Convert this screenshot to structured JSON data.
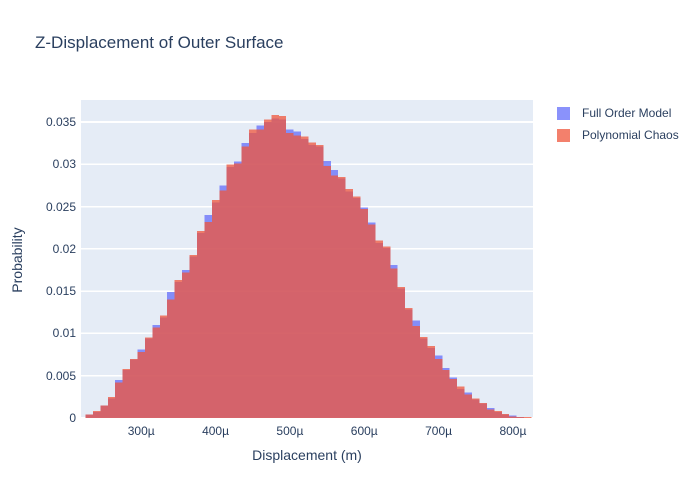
{
  "title": "Z-Displacement of Outer Surface",
  "colors": {
    "full_order_model": "#636efa",
    "polynomial_chaos": "#ef553b",
    "plot_background": "#e5ecf6",
    "gridline": "#ffffff",
    "text": "#2a3f5f",
    "page_background": "#ffffff"
  },
  "legend": {
    "items": [
      {
        "label": "Full Order Model",
        "color": "#636efa"
      },
      {
        "label": "Polynomial Chaos",
        "color": "#ef553b"
      }
    ]
  },
  "chart_data": {
    "type": "bar",
    "subtype": "overlaid-histogram",
    "title": "Z-Displacement of Outer Surface",
    "xlabel": "Displacement (m)",
    "ylabel": "Probability",
    "grid": "horizontal-only",
    "legend_position": "outside-top-right",
    "bar_opacity": 0.75,
    "bin_width_microns": 10,
    "xlim_microns": [
      219,
      827
    ],
    "ylim": [
      0,
      0.0376
    ],
    "xticks": [
      {
        "value": 300,
        "label": "300µ"
      },
      {
        "value": 400,
        "label": "400µ"
      },
      {
        "value": 500,
        "label": "500µ"
      },
      {
        "value": 600,
        "label": "600µ"
      },
      {
        "value": 700,
        "label": "700µ"
      },
      {
        "value": 800,
        "label": "800µ"
      }
    ],
    "yticks": [
      {
        "value": 0,
        "label": "0"
      },
      {
        "value": 0.005,
        "label": "0.005"
      },
      {
        "value": 0.01,
        "label": "0.01"
      },
      {
        "value": 0.015,
        "label": "0.015"
      },
      {
        "value": 0.02,
        "label": "0.02"
      },
      {
        "value": 0.025,
        "label": "0.025"
      },
      {
        "value": 0.03,
        "label": "0.03"
      },
      {
        "value": 0.035,
        "label": "0.035"
      }
    ],
    "x_microns": [
      230,
      240,
      250,
      260,
      270,
      280,
      290,
      300,
      310,
      320,
      330,
      340,
      350,
      360,
      370,
      380,
      390,
      400,
      410,
      420,
      430,
      440,
      450,
      460,
      470,
      480,
      490,
      500,
      510,
      520,
      530,
      540,
      550,
      560,
      570,
      580,
      590,
      600,
      610,
      620,
      630,
      640,
      650,
      660,
      670,
      680,
      690,
      700,
      710,
      720,
      730,
      740,
      750,
      760,
      770,
      780,
      790,
      800,
      810,
      820
    ],
    "series": [
      {
        "name": "Full Order Model",
        "color": "#636efa",
        "values": [
          0.0004,
          0.0007,
          0.0015,
          0.0023,
          0.0045,
          0.0057,
          0.0069,
          0.0081,
          0.0094,
          0.011,
          0.0119,
          0.0149,
          0.0161,
          0.0175,
          0.0191,
          0.0219,
          0.024,
          0.0255,
          0.0275,
          0.0297,
          0.0303,
          0.0325,
          0.0337,
          0.0346,
          0.035,
          0.0354,
          0.0353,
          0.0341,
          0.0339,
          0.033,
          0.0323,
          0.0321,
          0.0304,
          0.0293,
          0.0283,
          0.0268,
          0.026,
          0.0249,
          0.0231,
          0.0207,
          0.0201,
          0.0181,
          0.0153,
          0.0128,
          0.0115,
          0.0094,
          0.0083,
          0.0074,
          0.0059,
          0.0048,
          0.0034,
          0.003,
          0.0022,
          0.0017,
          0.0012,
          0.0007,
          0.0004,
          0.0003,
          0.0001,
          0.0
        ]
      },
      {
        "name": "Polynomial Chaos",
        "color": "#ef553b",
        "values": [
          0.0004,
          0.0008,
          0.0015,
          0.0025,
          0.0042,
          0.0058,
          0.007,
          0.0078,
          0.0095,
          0.0107,
          0.0121,
          0.014,
          0.0163,
          0.0172,
          0.0193,
          0.0221,
          0.0232,
          0.0258,
          0.0269,
          0.03,
          0.0301,
          0.0321,
          0.0341,
          0.0341,
          0.0353,
          0.0358,
          0.0357,
          0.0337,
          0.0334,
          0.0333,
          0.0326,
          0.0323,
          0.0298,
          0.0287,
          0.0285,
          0.0271,
          0.0262,
          0.0247,
          0.0229,
          0.021,
          0.0203,
          0.0177,
          0.0155,
          0.013,
          0.0109,
          0.0096,
          0.0085,
          0.007,
          0.0057,
          0.0046,
          0.0037,
          0.0028,
          0.0023,
          0.0018,
          0.001,
          0.0008,
          0.0005,
          0.0002,
          0.0001,
          0.0001
        ]
      }
    ]
  }
}
